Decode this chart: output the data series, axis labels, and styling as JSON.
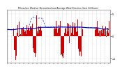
{
  "title": "Milwaukee Weather Normalized and Average Wind Direction (Last 24 Hours)",
  "background_color": "#ffffff",
  "plot_bg_color": "#ffffff",
  "grid_color": "#bbbbbb",
  "n_points": 144,
  "ylim": [
    -6,
    6
  ],
  "y_ticks": [
    5,
    0,
    -5
  ],
  "red_bar_color": "#cc0000",
  "blue_solid_color": "#0000bb",
  "blue_dash_color": "#3355cc",
  "red_baseline": 1.5,
  "blue_baseline": 1.8
}
